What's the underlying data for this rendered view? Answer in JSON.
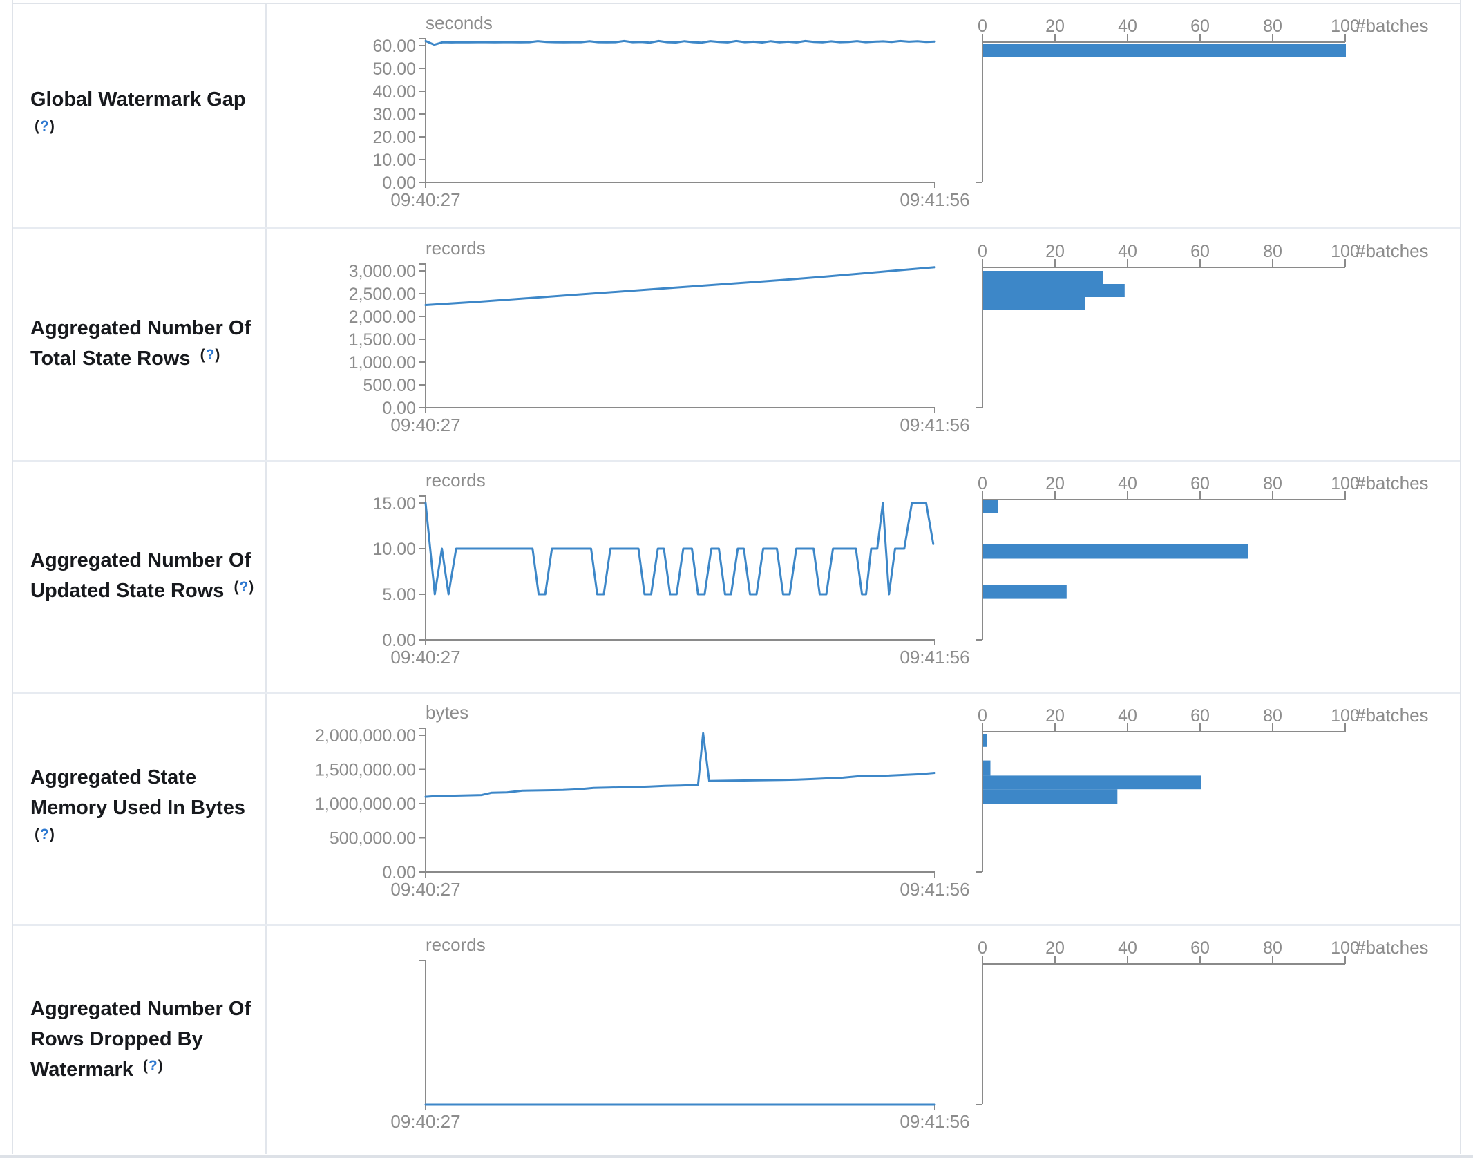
{
  "palette": {
    "accent_blue": "#3d87c8",
    "bar_blue": "#3d87c8",
    "axis_gray": "#8a8a8a",
    "label_gray": "#8c8c8c",
    "help_blue": "#2d78d0",
    "label_black": "#17191d"
  },
  "rows": [
    {
      "label_lines": [
        "Global Watermark Gap",
        "(?)"
      ]
    },
    {
      "label_lines": [
        "Aggregated Number Of",
        "Total State Rows (?)"
      ]
    },
    {
      "label_lines": [
        "Aggregated Number Of",
        "Updated State Rows (?)"
      ]
    },
    {
      "label_lines": [
        "Aggregated State",
        "Memory Used In Bytes",
        "(?)"
      ]
    },
    {
      "label_lines": [
        "Aggregated Number Of",
        "Rows Dropped By",
        "Watermark (?)"
      ]
    }
  ],
  "chart_data": [
    {
      "metric": "Global Watermark Gap",
      "type": "line",
      "unit": "seconds",
      "x_ticks": [
        "09:40:27",
        "09:41:56"
      ],
      "y_axis": {
        "max": 60,
        "tick_labels": [
          "60.00",
          "50.00",
          "40.00",
          "30.00",
          "20.00",
          "10.00",
          "0.00"
        ]
      },
      "series": {
        "name": "timeline",
        "values": [
          62.0,
          60.4,
          61.5,
          61.4,
          61.5,
          61.45,
          61.5,
          61.5,
          61.45,
          61.5,
          61.5,
          61.45,
          61.5,
          61.95,
          61.6,
          61.5,
          61.45,
          61.5,
          61.5,
          61.9,
          61.5,
          61.45,
          61.5,
          62.0,
          61.5,
          61.6,
          61.3,
          62.0,
          61.5,
          61.35,
          61.9,
          61.5,
          61.3,
          61.95,
          61.6,
          61.4,
          62.0,
          61.5,
          61.7,
          61.35,
          61.9,
          61.45,
          61.7,
          61.4,
          62.0,
          61.6,
          61.45,
          61.85,
          61.5,
          61.6,
          61.95,
          61.5,
          61.7,
          61.85,
          61.6,
          62.0,
          61.7,
          61.9,
          61.6,
          61.75
        ]
      },
      "histogram": {
        "unit": "#batches",
        "max": 100,
        "tick_labels": [
          "0",
          "20",
          "40",
          "60",
          "80",
          "100"
        ],
        "bins": [
          {
            "lo": 55.0,
            "hi": 60.6,
            "count": 100
          }
        ]
      }
    },
    {
      "metric": "Aggregated Number Of Total State Rows",
      "type": "line",
      "unit": "records",
      "x_ticks": [
        "09:40:27",
        "09:41:56"
      ],
      "y_axis": {
        "max": 3000,
        "tick_labels": [
          "3,000.00",
          "2,500.00",
          "2,000.00",
          "1,500.00",
          "1,000.00",
          "500.00",
          "0.00"
        ]
      },
      "series": {
        "name": "timeline",
        "points": [
          [
            0,
            2250
          ],
          [
            0.1,
            2320
          ],
          [
            0.2,
            2400
          ],
          [
            0.3,
            2480
          ],
          [
            0.4,
            2560
          ],
          [
            0.5,
            2640
          ],
          [
            0.6,
            2720
          ],
          [
            0.7,
            2800
          ],
          [
            0.78,
            2870
          ],
          [
            0.85,
            2935
          ],
          [
            0.92,
            3005
          ],
          [
            1,
            3080
          ]
        ]
      },
      "histogram": {
        "unit": "#batches",
        "max": 100,
        "tick_labels": [
          "0",
          "20",
          "40",
          "60",
          "80",
          "100"
        ],
        "bins": [
          {
            "lo": 2712,
            "hi": 3000,
            "count": 33
          },
          {
            "lo": 2424,
            "hi": 2712,
            "count": 39
          },
          {
            "lo": 2136,
            "hi": 2424,
            "count": 28
          }
        ]
      }
    },
    {
      "metric": "Aggregated Number Of Updated State Rows",
      "type": "line",
      "unit": "records",
      "x_ticks": [
        "09:40:27",
        "09:41:56"
      ],
      "y_axis": {
        "max": 15,
        "tick_labels": [
          "15.00",
          "10.00",
          "5.00",
          "0.00"
        ]
      },
      "series": {
        "name": "timeline",
        "points": [
          [
            0,
            15
          ],
          [
            0.018,
            5
          ],
          [
            0.032,
            10
          ],
          [
            0.045,
            5
          ],
          [
            0.06,
            10
          ],
          [
            0.21,
            10
          ],
          [
            0.222,
            5
          ],
          [
            0.235,
            5
          ],
          [
            0.248,
            10
          ],
          [
            0.325,
            10
          ],
          [
            0.337,
            5
          ],
          [
            0.35,
            5
          ],
          [
            0.363,
            10
          ],
          [
            0.418,
            10
          ],
          [
            0.43,
            5
          ],
          [
            0.443,
            5
          ],
          [
            0.456,
            10
          ],
          [
            0.468,
            10
          ],
          [
            0.48,
            5
          ],
          [
            0.493,
            5
          ],
          [
            0.506,
            10
          ],
          [
            0.523,
            10
          ],
          [
            0.535,
            5
          ],
          [
            0.548,
            5
          ],
          [
            0.561,
            10
          ],
          [
            0.576,
            10
          ],
          [
            0.588,
            5
          ],
          [
            0.6,
            5
          ],
          [
            0.613,
            10
          ],
          [
            0.625,
            10
          ],
          [
            0.637,
            5
          ],
          [
            0.65,
            5
          ],
          [
            0.663,
            10
          ],
          [
            0.69,
            10
          ],
          [
            0.702,
            5
          ],
          [
            0.715,
            5
          ],
          [
            0.728,
            10
          ],
          [
            0.762,
            10
          ],
          [
            0.774,
            5
          ],
          [
            0.787,
            5
          ],
          [
            0.8,
            10
          ],
          [
            0.845,
            10
          ],
          [
            0.857,
            5
          ],
          [
            0.865,
            5
          ],
          [
            0.875,
            10
          ],
          [
            0.887,
            10
          ],
          [
            0.898,
            15
          ],
          [
            0.91,
            5
          ],
          [
            0.922,
            10
          ],
          [
            0.94,
            10
          ],
          [
            0.955,
            15
          ],
          [
            0.983,
            15
          ],
          [
            0.997,
            10.5
          ]
        ]
      },
      "histogram": {
        "unit": "#batches",
        "max": 100,
        "tick_labels": [
          "0",
          "20",
          "40",
          "60",
          "80",
          "100"
        ],
        "bins": [
          {
            "lo": 13.9,
            "hi": 15.3,
            "count": 4
          },
          {
            "lo": 8.9,
            "hi": 10.5,
            "count": 73
          },
          {
            "lo": 4.5,
            "hi": 6.0,
            "count": 23
          }
        ]
      }
    },
    {
      "metric": "Aggregated State Memory Used In Bytes",
      "type": "line",
      "unit": "bytes",
      "x_ticks": [
        "09:40:27",
        "09:41:56"
      ],
      "y_axis": {
        "max": 2000000,
        "tick_labels": [
          "2,000,000.00",
          "1,500,000.00",
          "1,000,000.00",
          "500,000.00",
          "0.00"
        ]
      },
      "series": {
        "name": "timeline",
        "points": [
          [
            0,
            1100000
          ],
          [
            0.02,
            1110000
          ],
          [
            0.05,
            1115000
          ],
          [
            0.08,
            1120000
          ],
          [
            0.11,
            1125000
          ],
          [
            0.13,
            1160000
          ],
          [
            0.16,
            1165000
          ],
          [
            0.19,
            1190000
          ],
          [
            0.23,
            1195000
          ],
          [
            0.27,
            1200000
          ],
          [
            0.3,
            1210000
          ],
          [
            0.33,
            1230000
          ],
          [
            0.36,
            1235000
          ],
          [
            0.4,
            1240000
          ],
          [
            0.44,
            1250000
          ],
          [
            0.47,
            1260000
          ],
          [
            0.5,
            1265000
          ],
          [
            0.52,
            1270000
          ],
          [
            0.535,
            1272000
          ],
          [
            0.545,
            2030000
          ],
          [
            0.557,
            1330000
          ],
          [
            0.6,
            1335000
          ],
          [
            0.65,
            1340000
          ],
          [
            0.7,
            1345000
          ],
          [
            0.73,
            1350000
          ],
          [
            0.76,
            1360000
          ],
          [
            0.79,
            1370000
          ],
          [
            0.82,
            1380000
          ],
          [
            0.85,
            1400000
          ],
          [
            0.88,
            1405000
          ],
          [
            0.91,
            1410000
          ],
          [
            0.94,
            1420000
          ],
          [
            0.97,
            1430000
          ],
          [
            1,
            1450000
          ]
        ]
      },
      "histogram": {
        "unit": "#batches",
        "max": 100,
        "tick_labels": [
          "0",
          "20",
          "40",
          "60",
          "80",
          "100"
        ],
        "bins": [
          {
            "lo": 1830000,
            "hi": 2020000,
            "count": 1
          },
          {
            "lo": 1410000,
            "hi": 1630000,
            "count": 2
          },
          {
            "lo": 1210000,
            "hi": 1410000,
            "count": 60
          },
          {
            "lo": 1000000,
            "hi": 1210000,
            "count": 37
          }
        ]
      }
    },
    {
      "metric": "Aggregated Number Of Rows Dropped By Watermark",
      "type": "line",
      "unit": "records",
      "x_ticks": [
        "09:40:27",
        "09:41:56"
      ],
      "y_axis": {
        "max": 1,
        "tick_labels": []
      },
      "series": {
        "name": "timeline",
        "points": [
          [
            0,
            0
          ],
          [
            1,
            0
          ]
        ]
      },
      "histogram": {
        "unit": "#batches",
        "max": 100,
        "tick_labels": [
          "0",
          "20",
          "40",
          "60",
          "80",
          "100"
        ],
        "bins": []
      }
    }
  ]
}
